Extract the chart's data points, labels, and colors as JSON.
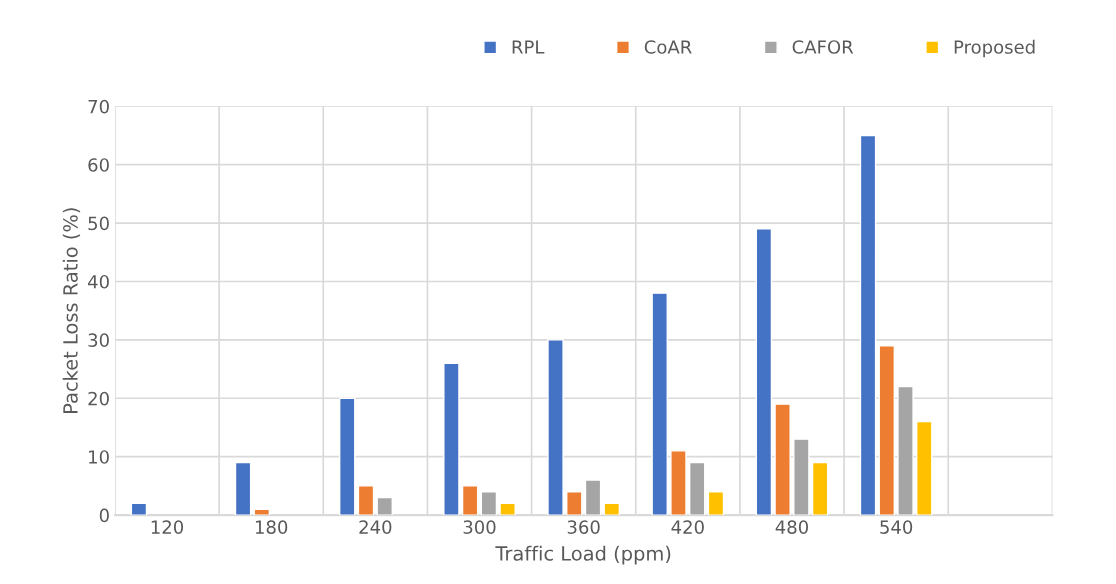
{
  "chart_data": {
    "type": "bar",
    "xlabel": "Traffic Load (ppm)",
    "ylabel": "Packet Loss Ratio (%)",
    "categories": [
      "120",
      "180",
      "240",
      "300",
      "360",
      "420",
      "480",
      "540",
      null
    ],
    "series": [
      {
        "name": "RPL",
        "color": "#4472c4",
        "values": [
          2,
          9,
          20,
          26,
          30,
          38,
          49,
          65,
          null
        ]
      },
      {
        "name": "CoAR",
        "color": "#ed7d31",
        "values": [
          null,
          1,
          5,
          5,
          4,
          11,
          19,
          29,
          null
        ]
      },
      {
        "name": "CAFOR",
        "color": "#a5a5a5",
        "values": [
          null,
          null,
          3,
          4,
          6,
          9,
          13,
          22,
          null
        ]
      },
      {
        "name": "Proposed",
        "color": "#ffc000",
        "values": [
          null,
          null,
          null,
          2,
          2,
          4,
          9,
          16,
          null
        ]
      }
    ],
    "ylim": [
      0,
      70
    ],
    "yticks": [
      0,
      10,
      20,
      30,
      40,
      50,
      60,
      70
    ],
    "grid": true,
    "legend": "top right"
  }
}
